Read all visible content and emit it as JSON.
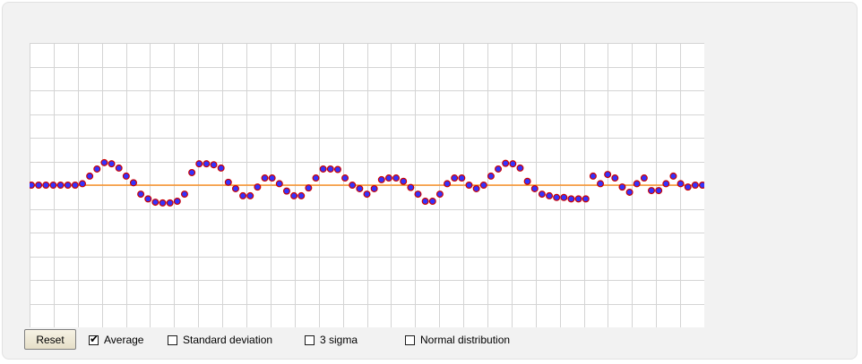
{
  "controls": {
    "reset_label": "Reset",
    "options": [
      {
        "label": "Average",
        "checked": true
      },
      {
        "label": "Standard deviation",
        "checked": false
      },
      {
        "label": "3 sigma",
        "checked": false
      },
      {
        "label": "Normal distribution",
        "checked": false
      }
    ]
  },
  "chart_data": {
    "type": "scatter",
    "title": "",
    "xlabel": "",
    "ylabel": "",
    "grid": true,
    "average_line": {
      "color": "#ff8000",
      "y": 0
    },
    "marker_color": "#3333ff",
    "marker_edge_color": "#cc0000",
    "ylim": [
      -6,
      6
    ],
    "xlim": [
      0,
      28
    ],
    "y": [
      0,
      0,
      0,
      0,
      0,
      0,
      0,
      0.06,
      0.38,
      0.68,
      0.95,
      0.9,
      0.72,
      0.38,
      0.1,
      -0.38,
      -0.58,
      -0.72,
      -0.75,
      -0.75,
      -0.68,
      -0.38,
      0.53,
      0.9,
      0.9,
      0.86,
      0.72,
      0.12,
      -0.15,
      -0.45,
      -0.45,
      -0.08,
      0.3,
      0.3,
      0.06,
      -0.25,
      -0.45,
      -0.45,
      -0.12,
      0.3,
      0.68,
      0.68,
      0.66,
      0.3,
      0,
      -0.15,
      -0.38,
      -0.15,
      0.23,
      0.3,
      0.3,
      0.16,
      -0.1,
      -0.38,
      -0.68,
      -0.68,
      -0.38,
      0.06,
      0.3,
      0.3,
      0,
      -0.15,
      0,
      0.38,
      0.68,
      0.92,
      0.9,
      0.72,
      0.16,
      -0.15,
      -0.38,
      -0.45,
      -0.52,
      -0.52,
      -0.58,
      -0.58,
      -0.58,
      0.38,
      0.06,
      0.45,
      0.3,
      -0.08,
      -0.3,
      0.06,
      0.3,
      -0.23,
      -0.23,
      0.06,
      0.38,
      0.06,
      -0.08,
      0,
      0
    ]
  }
}
